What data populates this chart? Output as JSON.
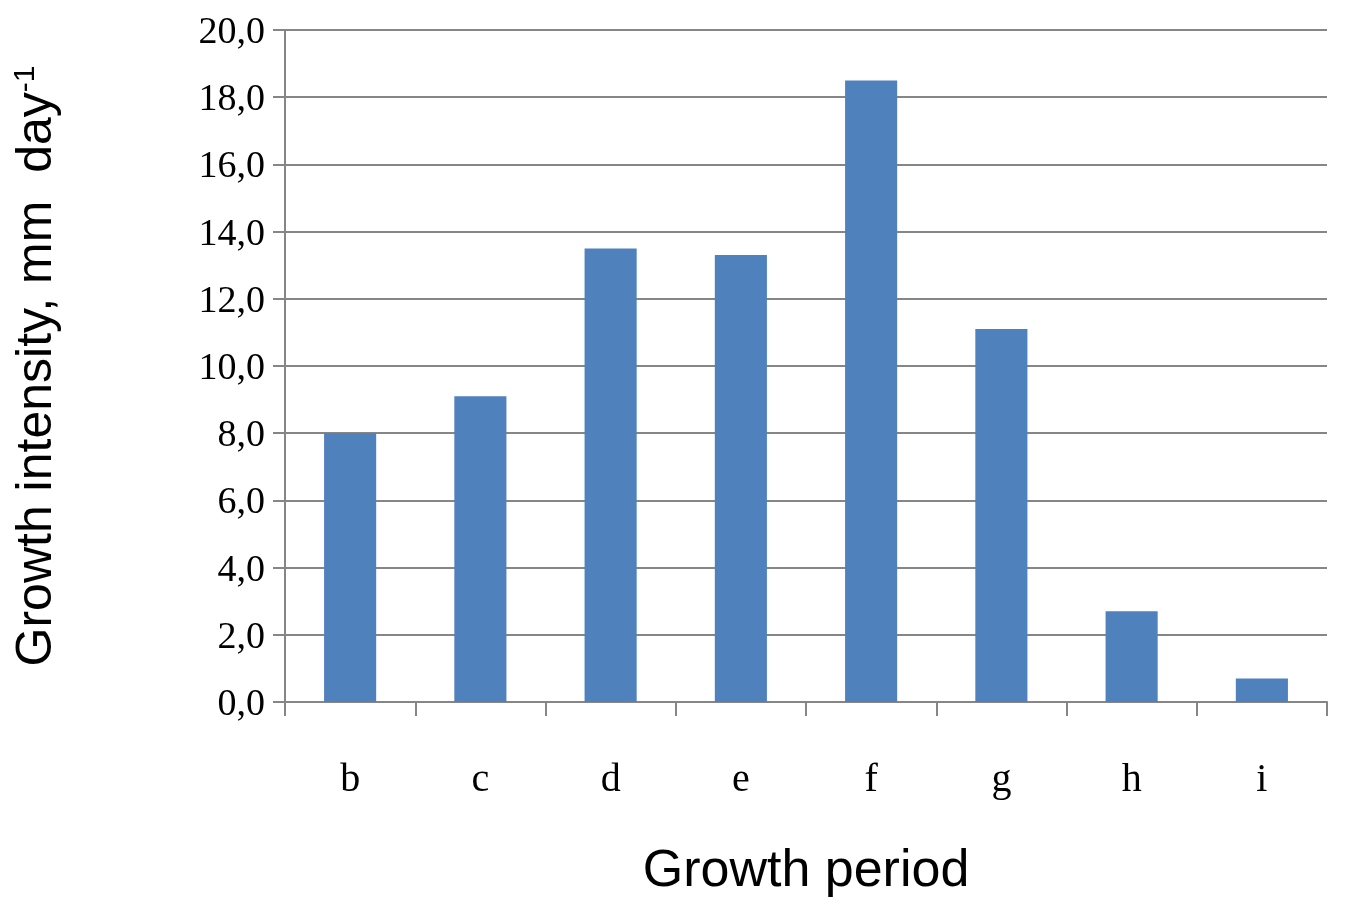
{
  "chart_data": {
    "type": "bar",
    "xlabel": "Growth period",
    "ylabel": "Growth intensity, mm  day$^{-1}$",
    "categories": [
      "b",
      "c",
      "d",
      "e",
      "f",
      "g",
      "h",
      "i"
    ],
    "values": [
      8.0,
      9.1,
      13.5,
      13.3,
      18.5,
      11.1,
      2.7,
      0.7
    ],
    "color": "#4f81bd",
    "ylim": [
      0,
      20
    ],
    "yticks": [
      {
        "value": 0,
        "label": "0,0"
      },
      {
        "value": 2,
        "label": "2,0"
      },
      {
        "value": 4,
        "label": "4,0"
      },
      {
        "value": 6,
        "label": "6,0"
      },
      {
        "value": 8,
        "label": "8,0"
      },
      {
        "value": 10,
        "label": "10,0"
      },
      {
        "value": 12,
        "label": "12,0"
      },
      {
        "value": 14,
        "label": "14,0"
      },
      {
        "value": 16,
        "label": "16,0"
      },
      {
        "value": 18,
        "label": "18,0"
      },
      {
        "value": 20,
        "label": "20,0"
      }
    ],
    "grid": "y"
  }
}
